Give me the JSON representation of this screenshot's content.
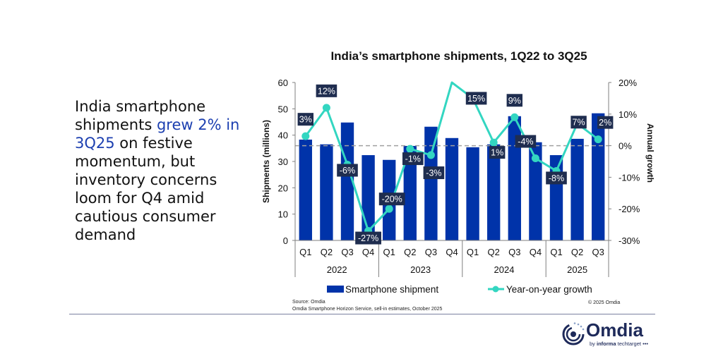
{
  "headline": {
    "before": "India smartphone shipments ",
    "highlight": "grew 2% in 3Q25",
    "after": " on festive momentum, but inventory concerns loom for Q4 amid cautious consumer demand",
    "highlight_color": "#1c3fb0"
  },
  "footer": {
    "source_line1": "Source: Omdia",
    "source_line2": "Omdia Smartphone Horizon Service, sell-in estimates, October 2025",
    "copyright": "© 2025 Omdia"
  },
  "logo": {
    "name": "Omdia",
    "by_prefix": "by ",
    "by_brand": "informa",
    "by_suffix": " techtarget"
  },
  "chart_data": {
    "type": "bar",
    "title": "India’s smartphone shipments, 1Q22 to 3Q25",
    "ylabel": "Shipments (millions)",
    "y2label": "Annual growth",
    "ylim": [
      0,
      60
    ],
    "y_ticks": [
      0,
      10,
      20,
      30,
      40,
      50,
      60
    ],
    "y2lim": [
      -30,
      20
    ],
    "y2_ticks": [
      "-30%",
      "-20%",
      "-10%",
      "0%",
      "10%",
      "20%"
    ],
    "y2_tick_values": [
      -30,
      -20,
      -10,
      0,
      10,
      20
    ],
    "categories": [
      "Q1",
      "Q2",
      "Q3",
      "Q4",
      "Q1",
      "Q2",
      "Q3",
      "Q4",
      "Q1",
      "Q2",
      "Q3",
      "Q4",
      "Q1",
      "Q2",
      "Q3"
    ],
    "year_groups": [
      {
        "label": "2022",
        "count": 4
      },
      {
        "label": "2023",
        "count": 4
      },
      {
        "label": "2024",
        "count": 4
      },
      {
        "label": "2025",
        "count": 3
      }
    ],
    "series": [
      {
        "name": "Smartphone shipment",
        "type": "bar",
        "axis": "left",
        "color": "#0033a9",
        "values": [
          38.3,
          36.5,
          44.8,
          32.4,
          30.6,
          35.9,
          43.2,
          38.9,
          35.4,
          36.5,
          47.2,
          37.3,
          32.4,
          38.6,
          48.3
        ]
      },
      {
        "name": "Year-on-year growth",
        "type": "line",
        "axis": "right",
        "color": "#33d6c1",
        "values": [
          3,
          12,
          -6,
          -27,
          -20,
          -1,
          -3,
          20,
          15,
          1,
          9,
          -4,
          -8,
          7,
          2
        ],
        "labels": [
          "3%",
          "12%",
          "-6%",
          "-27%",
          "-20%",
          "-1%",
          "-3%",
          "",
          "15%",
          "1%",
          "9%",
          "-4%",
          "-8%",
          "7%",
          "2%"
        ],
        "note": "Q4 2023 point is clipped at the 20% axis maximum and has no visible label"
      }
    ],
    "reference_line": {
      "axis": "right",
      "value": 0,
      "style": "dashed"
    },
    "legend": {
      "placement": "bottom",
      "entries": [
        "Smartphone shipment",
        "Year-on-year growth"
      ]
    },
    "grid": false
  }
}
